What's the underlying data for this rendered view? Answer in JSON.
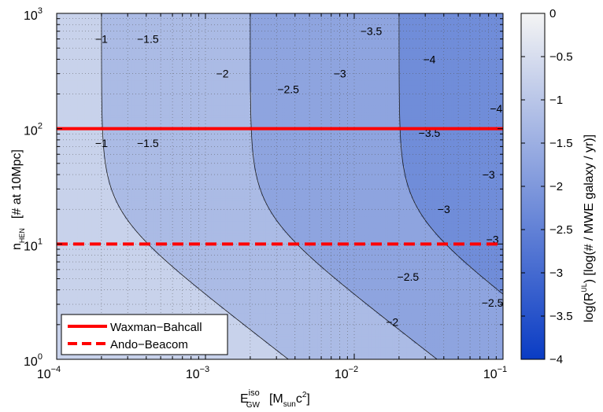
{
  "chart_data": {
    "type": "contour",
    "x_scale": "log",
    "y_scale": "log",
    "xlim": [
      0.0001,
      0.1
    ],
    "ylim": [
      1,
      1000
    ],
    "x_ticks": [
      {
        "value": 0.0001,
        "base": "10",
        "exp": "−4"
      },
      {
        "value": 0.001,
        "base": "10",
        "exp": "−3"
      },
      {
        "value": 0.01,
        "base": "10",
        "exp": "−2"
      },
      {
        "value": 0.1,
        "base": "10",
        "exp": "−1"
      }
    ],
    "y_ticks": [
      {
        "value": 1,
        "base": "10",
        "exp": "0"
      },
      {
        "value": 10,
        "base": "10",
        "exp": "1"
      },
      {
        "value": 100,
        "base": "10",
        "exp": "2"
      },
      {
        "value": 1000,
        "base": "10",
        "exp": "3"
      }
    ],
    "xlabel": {
      "main": "E",
      "sup": "iso",
      "sub": "GW",
      "unit_open": "[M",
      "unit_sub": "sun",
      "unit_rest": "c",
      "unit_sup": "2",
      "unit_close": "]"
    },
    "ylabel": {
      "main": "n",
      "sub": "HEN",
      "unit": "[# at 10Mpc]"
    },
    "colorbar": {
      "range": [
        -4,
        0
      ],
      "ticks": [
        {
          "value": 0,
          "label": "0"
        },
        {
          "value": -0.5,
          "label": "−0.5"
        },
        {
          "value": -1,
          "label": "−1"
        },
        {
          "value": -1.5,
          "label": "−1.5"
        },
        {
          "value": -2,
          "label": "−2"
        },
        {
          "value": -2.5,
          "label": "−2.5"
        },
        {
          "value": -3,
          "label": "−3"
        },
        {
          "value": -3.5,
          "label": "−3.5"
        },
        {
          "value": -4,
          "label": "−4"
        }
      ],
      "label": {
        "pre": "log(R",
        "sup": "UL",
        "post": ")   [log(# / MWE galaxy / yr)]"
      },
      "color_high": "#f4f4f4",
      "color_low": "#0a3cc4"
    },
    "contour_levels": [
      -1,
      -1.5,
      -2,
      -2.5,
      -3,
      -3.5,
      -4
    ],
    "contour_labels": [
      {
        "text": "−1",
        "x": 0.0002,
        "y": 600
      },
      {
        "text": "−1",
        "x": 0.0002,
        "y": 75
      },
      {
        "text": "−1.5",
        "x": 0.00041,
        "y": 600
      },
      {
        "text": "−1.5",
        "x": 0.00041,
        "y": 75
      },
      {
        "text": "−2",
        "x": 0.0013,
        "y": 300
      },
      {
        "text": "−2",
        "x": 0.018,
        "y": 2.1
      },
      {
        "text": "−2.5",
        "x": 0.0036,
        "y": 220
      },
      {
        "text": "−2.5",
        "x": 0.023,
        "y": 5.2
      },
      {
        "text": "−2.5",
        "x": 0.085,
        "y": 3.1
      },
      {
        "text": "−3",
        "x": 0.008,
        "y": 300
      },
      {
        "text": "−3",
        "x": 0.04,
        "y": 20
      },
      {
        "text": "−3",
        "x": 0.085,
        "y": 11
      },
      {
        "text": "−3.5",
        "x": 0.013,
        "y": 700
      },
      {
        "text": "−3.5",
        "x": 0.032,
        "y": 92
      },
      {
        "text": "−3",
        "x": 0.08,
        "y": 40
      },
      {
        "text": "−4",
        "x": 0.032,
        "y": 400
      },
      {
        "text": "−4",
        "x": 0.09,
        "y": 150
      }
    ],
    "series": [
      {
        "name": "Waxman−Bahcall",
        "type": "hline",
        "y": 100,
        "color": "#ff0000",
        "style": "solid"
      },
      {
        "name": "Ando−Beacom",
        "type": "hline",
        "y": 10,
        "color": "#ff0000",
        "style": "dashed"
      }
    ],
    "legend_position": "bottom-left",
    "grid": "dotted"
  }
}
